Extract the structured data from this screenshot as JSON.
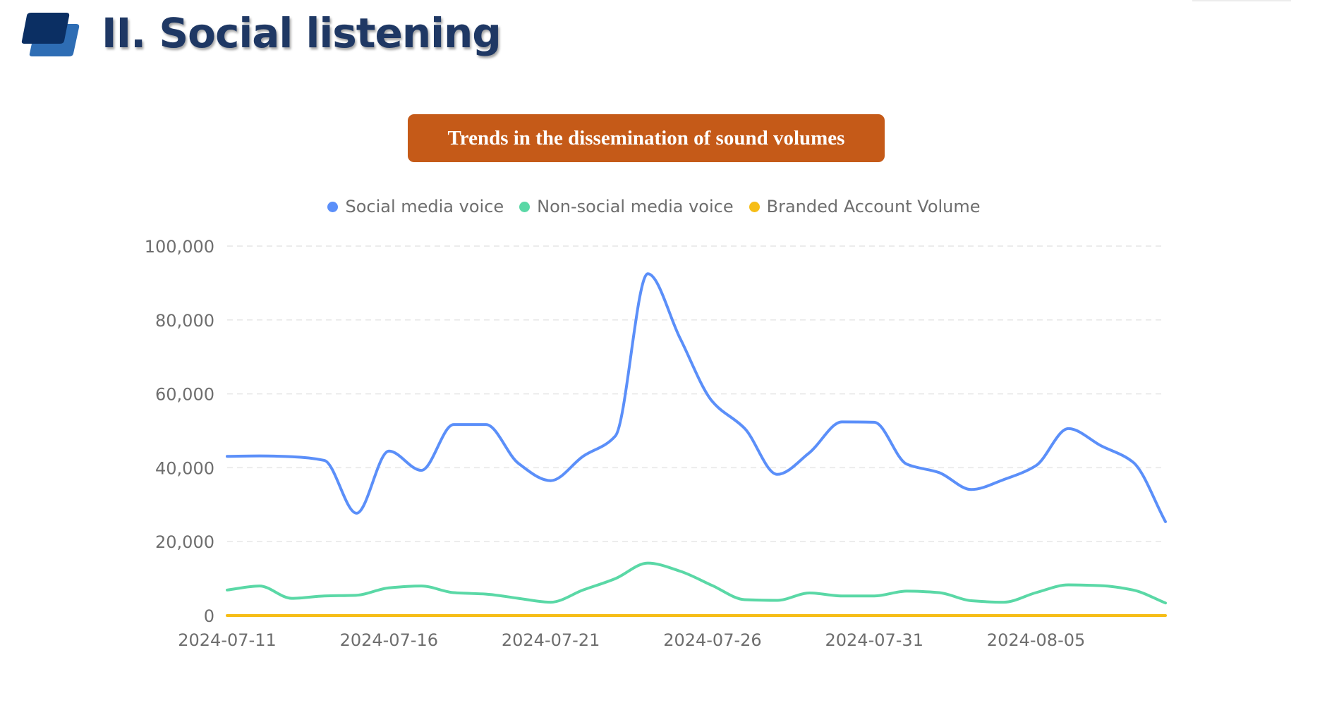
{
  "header": {
    "title": "II. Social listening",
    "icon": "stacked-parallelogram-icon"
  },
  "chart_title": "Trends in the dissemination of sound volumes",
  "colors": {
    "title_box": "#c55a18",
    "title_text": "#1f3864",
    "social": "#5b8ff9",
    "non_social": "#5ad8a6",
    "branded": "#f6bd16",
    "grid": "#e6e6e6",
    "axis_text": "#6e6e6e"
  },
  "chart_data": {
    "type": "line",
    "title": "Trends in the dissemination of sound volumes",
    "xlabel": "",
    "ylabel": "",
    "ylim": [
      0,
      100000
    ],
    "yticks": [
      0,
      20000,
      40000,
      60000,
      80000,
      100000
    ],
    "ytick_labels": [
      "0",
      "20,000",
      "40,000",
      "60,000",
      "80,000",
      "100,000"
    ],
    "xtick_labels": [
      "2024-07-11",
      "2024-07-16",
      "2024-07-21",
      "2024-07-26",
      "2024-07-31",
      "2024-08-05"
    ],
    "xtick_indices": [
      0,
      5,
      10,
      15,
      20,
      25
    ],
    "grid": true,
    "legend_position": "top-center",
    "smooth": true,
    "x": [
      "2024-07-11",
      "2024-07-12",
      "2024-07-13",
      "2024-07-14",
      "2024-07-15",
      "2024-07-16",
      "2024-07-17",
      "2024-07-18",
      "2024-07-19",
      "2024-07-20",
      "2024-07-21",
      "2024-07-22",
      "2024-07-23",
      "2024-07-24",
      "2024-07-25",
      "2024-07-26",
      "2024-07-27",
      "2024-07-28",
      "2024-07-29",
      "2024-07-30",
      "2024-07-31",
      "2024-08-01",
      "2024-08-02",
      "2024-08-03",
      "2024-08-04",
      "2024-08-05",
      "2024-08-06",
      "2024-08-07",
      "2024-08-08",
      "2024-08-09"
    ],
    "series": [
      {
        "name": "Social media voice",
        "color": "#5b8ff9",
        "values": [
          43100,
          43200,
          43000,
          42000,
          27700,
          44500,
          39300,
          51700,
          51700,
          41200,
          36500,
          43100,
          48600,
          92500,
          75000,
          57900,
          50600,
          38200,
          44100,
          52400,
          52300,
          41000,
          38700,
          34100,
          36800,
          40600,
          50600,
          46000,
          41500,
          25400
        ]
      },
      {
        "name": "Non-social media voice",
        "color": "#5ad8a6",
        "values": [
          6900,
          8000,
          4650,
          5300,
          5500,
          7500,
          8000,
          6200,
          5800,
          4650,
          3600,
          6900,
          10000,
          14200,
          12000,
          8100,
          4300,
          4100,
          6100,
          5300,
          5300,
          6600,
          6200,
          4000,
          3600,
          6200,
          8300,
          8100,
          6900,
          3400
        ]
      },
      {
        "name": "Branded Account Volume",
        "color": "#f6bd16",
        "values": [
          0,
          0,
          0,
          0,
          0,
          0,
          0,
          0,
          0,
          0,
          0,
          0,
          0,
          0,
          0,
          0,
          0,
          0,
          0,
          0,
          0,
          0,
          0,
          0,
          0,
          0,
          0,
          0,
          0,
          0
        ]
      }
    ]
  }
}
